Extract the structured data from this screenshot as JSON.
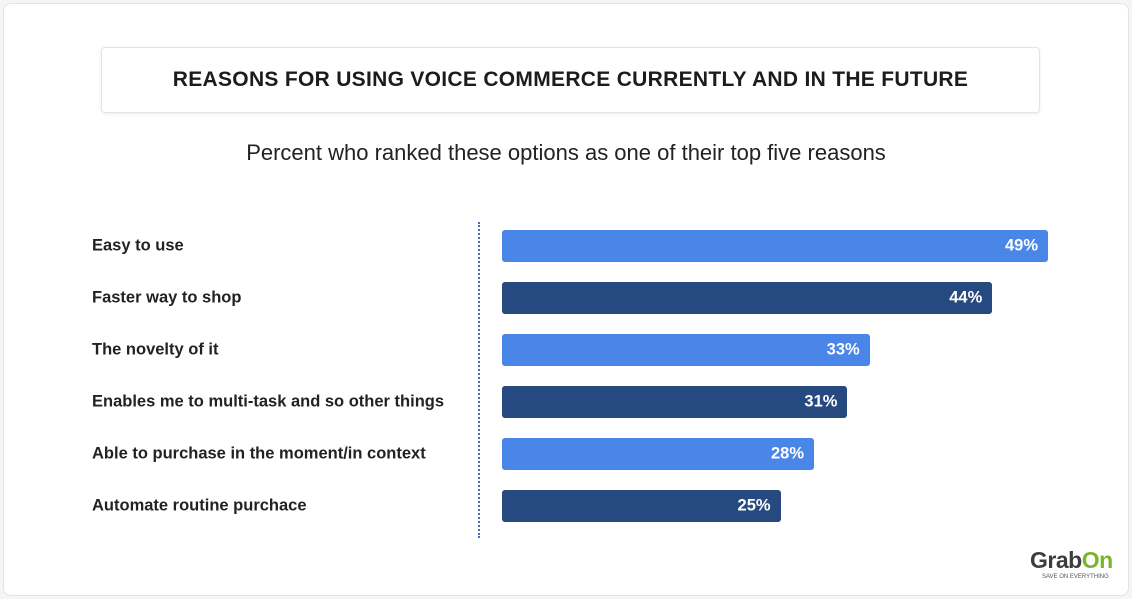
{
  "chart_data": {
    "type": "bar",
    "orientation": "horizontal",
    "title": "REASONS FOR USING VOICE COMMERCE CURRENTLY AND IN THE FUTURE",
    "subtitle": "Percent who ranked these options as one of their top five reasons",
    "categories": [
      "Easy to use",
      "Faster way to shop",
      "The novelty of it",
      "Enables me to multi-task and so other things",
      "Able to purchase in the moment/in context",
      "Automate routine purchace"
    ],
    "values": [
      49,
      44,
      33,
      31,
      28,
      25
    ],
    "value_labels": [
      "49%",
      "44%",
      "33%",
      "31%",
      "28%",
      "25%"
    ],
    "colors": [
      "#4a86e8",
      "#264a80",
      "#4a86e8",
      "#264a80",
      "#4a86e8",
      "#264a80"
    ],
    "xlim": [
      0,
      49
    ],
    "grid": false
  },
  "logo": {
    "name_a": "Grab",
    "name_b": "On",
    "tagline": "SAVE ON EVERYTHING"
  }
}
